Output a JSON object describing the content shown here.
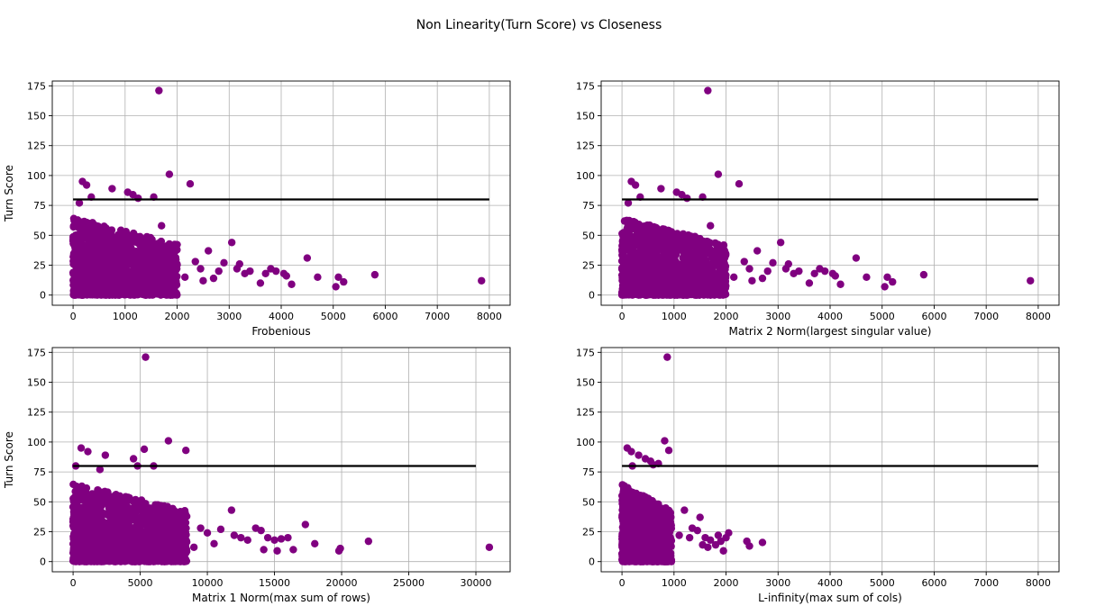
{
  "figure": {
    "suptitle": "Non Linearity(Turn Score) vs Closeness",
    "colors": {
      "points": "#800080",
      "line": "#000000",
      "grid": "#b0b0b0"
    }
  },
  "chart_data": [
    {
      "type": "scatter",
      "xlabel": "Frobenious",
      "ylabel": "Turn Score",
      "xlim": [
        -400,
        8400
      ],
      "ylim": [
        -8.5,
        179
      ],
      "xticks": [
        0,
        1000,
        2000,
        3000,
        4000,
        5000,
        6000,
        7000,
        8000
      ],
      "yticks": [
        0,
        25,
        50,
        75,
        100,
        125,
        150,
        175
      ],
      "grid": true,
      "hline": {
        "y": 80,
        "x_start": 0,
        "x_end": 8000
      },
      "dense_cloud": {
        "x_max": 2000,
        "y_min": 0,
        "y_max": 65
      },
      "points": [
        [
          1650,
          171
        ],
        [
          1850,
          101
        ],
        [
          180,
          95
        ],
        [
          260,
          92
        ],
        [
          750,
          89
        ],
        [
          2250,
          93
        ],
        [
          1050,
          86
        ],
        [
          1150,
          84
        ],
        [
          1250,
          81
        ],
        [
          1550,
          82
        ],
        [
          350,
          82
        ],
        [
          120,
          77
        ],
        [
          1700,
          58
        ],
        [
          2600,
          37
        ],
        [
          3050,
          44
        ],
        [
          4500,
          31
        ],
        [
          2350,
          28
        ],
        [
          2900,
          27
        ],
        [
          3200,
          26
        ],
        [
          3400,
          20
        ],
        [
          3800,
          22
        ],
        [
          4050,
          18
        ],
        [
          4100,
          16
        ],
        [
          3600,
          10
        ],
        [
          4200,
          9
        ],
        [
          5100,
          15
        ],
        [
          5200,
          11
        ],
        [
          5050,
          7
        ],
        [
          4700,
          15
        ],
        [
          5800,
          17
        ],
        [
          7850,
          12
        ],
        [
          2450,
          22
        ],
        [
          3300,
          18
        ],
        [
          2150,
          15
        ],
        [
          3700,
          18
        ],
        [
          2700,
          14
        ],
        [
          3900,
          20
        ],
        [
          2500,
          12
        ],
        [
          2800,
          20
        ],
        [
          3150,
          22
        ]
      ]
    },
    {
      "type": "scatter",
      "xlabel": "Matrix 2 Norm(largest singular value)",
      "ylabel": "",
      "xlim": [
        -400,
        8400
      ],
      "ylim": [
        -8.5,
        179
      ],
      "xticks": [
        0,
        1000,
        2000,
        3000,
        4000,
        5000,
        6000,
        7000,
        8000
      ],
      "yticks": [
        0,
        25,
        50,
        75,
        100,
        125,
        150,
        175
      ],
      "grid": true,
      "hline": {
        "y": 80,
        "x_start": 0,
        "x_end": 8000
      },
      "dense_cloud": {
        "x_max": 2000,
        "y_min": 0,
        "y_max": 65
      },
      "points": [
        [
          1650,
          171
        ],
        [
          1850,
          101
        ],
        [
          180,
          95
        ],
        [
          260,
          92
        ],
        [
          750,
          89
        ],
        [
          2250,
          93
        ],
        [
          1050,
          86
        ],
        [
          1150,
          84
        ],
        [
          1250,
          81
        ],
        [
          1550,
          82
        ],
        [
          350,
          82
        ],
        [
          120,
          77
        ],
        [
          1700,
          58
        ],
        [
          2600,
          37
        ],
        [
          3050,
          44
        ],
        [
          4500,
          31
        ],
        [
          2350,
          28
        ],
        [
          2900,
          27
        ],
        [
          3200,
          26
        ],
        [
          3400,
          20
        ],
        [
          3800,
          22
        ],
        [
          4050,
          18
        ],
        [
          4100,
          16
        ],
        [
          3600,
          10
        ],
        [
          4200,
          9
        ],
        [
          5100,
          15
        ],
        [
          5200,
          11
        ],
        [
          5050,
          7
        ],
        [
          4700,
          15
        ],
        [
          5800,
          17
        ],
        [
          7850,
          12
        ],
        [
          2450,
          22
        ],
        [
          3300,
          18
        ],
        [
          2150,
          15
        ],
        [
          3700,
          18
        ],
        [
          2700,
          14
        ],
        [
          3900,
          20
        ],
        [
          2500,
          12
        ],
        [
          2800,
          20
        ],
        [
          3150,
          22
        ]
      ]
    },
    {
      "type": "scatter",
      "xlabel": "Matrix 1 Norm(max sum of rows)",
      "ylabel": "Turn Score",
      "xlim": [
        -1550,
        32550
      ],
      "ylim": [
        -8.5,
        179
      ],
      "xticks": [
        0,
        5000,
        10000,
        15000,
        20000,
        25000,
        30000
      ],
      "yticks": [
        0,
        25,
        50,
        75,
        100,
        125,
        150,
        175
      ],
      "grid": true,
      "hline": {
        "y": 80,
        "x_start": 0,
        "x_end": 30000
      },
      "dense_cloud": {
        "x_max": 8500,
        "y_min": 0,
        "y_max": 65
      },
      "points": [
        [
          5400,
          171
        ],
        [
          7100,
          101
        ],
        [
          600,
          95
        ],
        [
          1100,
          92
        ],
        [
          2400,
          89
        ],
        [
          8400,
          93
        ],
        [
          4500,
          86
        ],
        [
          5300,
          94
        ],
        [
          6000,
          80
        ],
        [
          4800,
          80
        ],
        [
          200,
          80
        ],
        [
          2000,
          77
        ],
        [
          11800,
          43
        ],
        [
          17300,
          31
        ],
        [
          9500,
          28
        ],
        [
          11000,
          27
        ],
        [
          12000,
          22
        ],
        [
          13600,
          28
        ],
        [
          14000,
          26
        ],
        [
          14500,
          20
        ],
        [
          15000,
          18
        ],
        [
          15500,
          19
        ],
        [
          16000,
          20
        ],
        [
          16400,
          10
        ],
        [
          15200,
          9
        ],
        [
          18000,
          15
        ],
        [
          19900,
          11
        ],
        [
          19800,
          9
        ],
        [
          22000,
          17
        ],
        [
          31000,
          12
        ],
        [
          10500,
          15
        ],
        [
          12500,
          20
        ],
        [
          9000,
          12
        ],
        [
          13000,
          18
        ],
        [
          10000,
          24
        ],
        [
          14200,
          10
        ]
      ]
    },
    {
      "type": "scatter",
      "xlabel": "L-infinity(max sum of cols)",
      "ylabel": "",
      "xlim": [
        -400,
        8400
      ],
      "ylim": [
        -8.5,
        179
      ],
      "xticks": [
        0,
        1000,
        2000,
        3000,
        4000,
        5000,
        6000,
        7000,
        8000
      ],
      "yticks": [
        0,
        25,
        50,
        75,
        100,
        125,
        150,
        175
      ],
      "grid": true,
      "hline": {
        "y": 80,
        "x_start": 0,
        "x_end": 8000
      },
      "dense_cloud": {
        "x_max": 950,
        "y_min": 0,
        "y_max": 65
      },
      "points": [
        [
          870,
          171
        ],
        [
          820,
          101
        ],
        [
          100,
          95
        ],
        [
          180,
          92
        ],
        [
          320,
          89
        ],
        [
          900,
          93
        ],
        [
          450,
          86
        ],
        [
          550,
          84
        ],
        [
          600,
          81
        ],
        [
          700,
          82
        ],
        [
          200,
          80
        ],
        [
          1200,
          43
        ],
        [
          1500,
          37
        ],
        [
          1350,
          28
        ],
        [
          1450,
          26
        ],
        [
          1600,
          20
        ],
        [
          1700,
          18
        ],
        [
          1850,
          22
        ],
        [
          1900,
          17
        ],
        [
          1950,
          9
        ],
        [
          2000,
          20
        ],
        [
          2050,
          24
        ],
        [
          1800,
          14
        ],
        [
          1550,
          14
        ],
        [
          2400,
          17
        ],
        [
          2450,
          13
        ],
        [
          2700,
          16
        ],
        [
          1300,
          20
        ],
        [
          1650,
          12
        ],
        [
          1100,
          22
        ]
      ]
    }
  ]
}
